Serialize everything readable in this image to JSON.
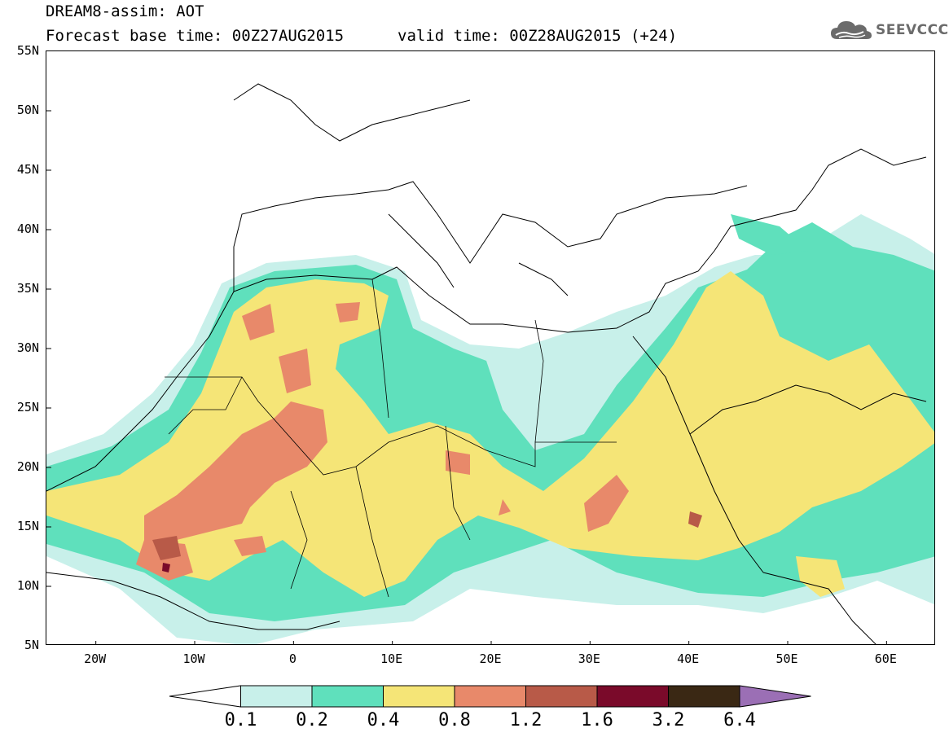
{
  "title": {
    "line1": "DREAM8-assim: AOT",
    "base_time": "Forecast base time: 00Z27AUG2015",
    "valid_time": "valid time: 00Z28AUG2015 (+24)"
  },
  "logo": {
    "text": "SEEVCCC",
    "icon": "cloud-icon"
  },
  "map": {
    "variable": "AOT",
    "region": "North Africa / Mediterranean / Middle East",
    "lon_range": [
      -25,
      65
    ],
    "lat_range": [
      5,
      55
    ],
    "lat_labels": [
      "55N",
      "50N",
      "45N",
      "40N",
      "35N",
      "30N",
      "25N",
      "20N",
      "15N",
      "10N",
      "5N"
    ],
    "lon_labels": [
      "20W",
      "10W",
      "0",
      "10E",
      "20E",
      "30E",
      "40E",
      "50E",
      "60E"
    ]
  },
  "colorbar": {
    "labels": [
      "0.1",
      "0.2",
      "0.4",
      "0.8",
      "1.2",
      "1.6",
      "3.2",
      "6.4"
    ],
    "colors": [
      "#c8f0ea",
      "#5fe0bc",
      "#f5e577",
      "#e8896a",
      "#b85a48",
      "#7a0a2a",
      "#3a2814",
      "#9b6fb5"
    ],
    "extend": "both"
  }
}
